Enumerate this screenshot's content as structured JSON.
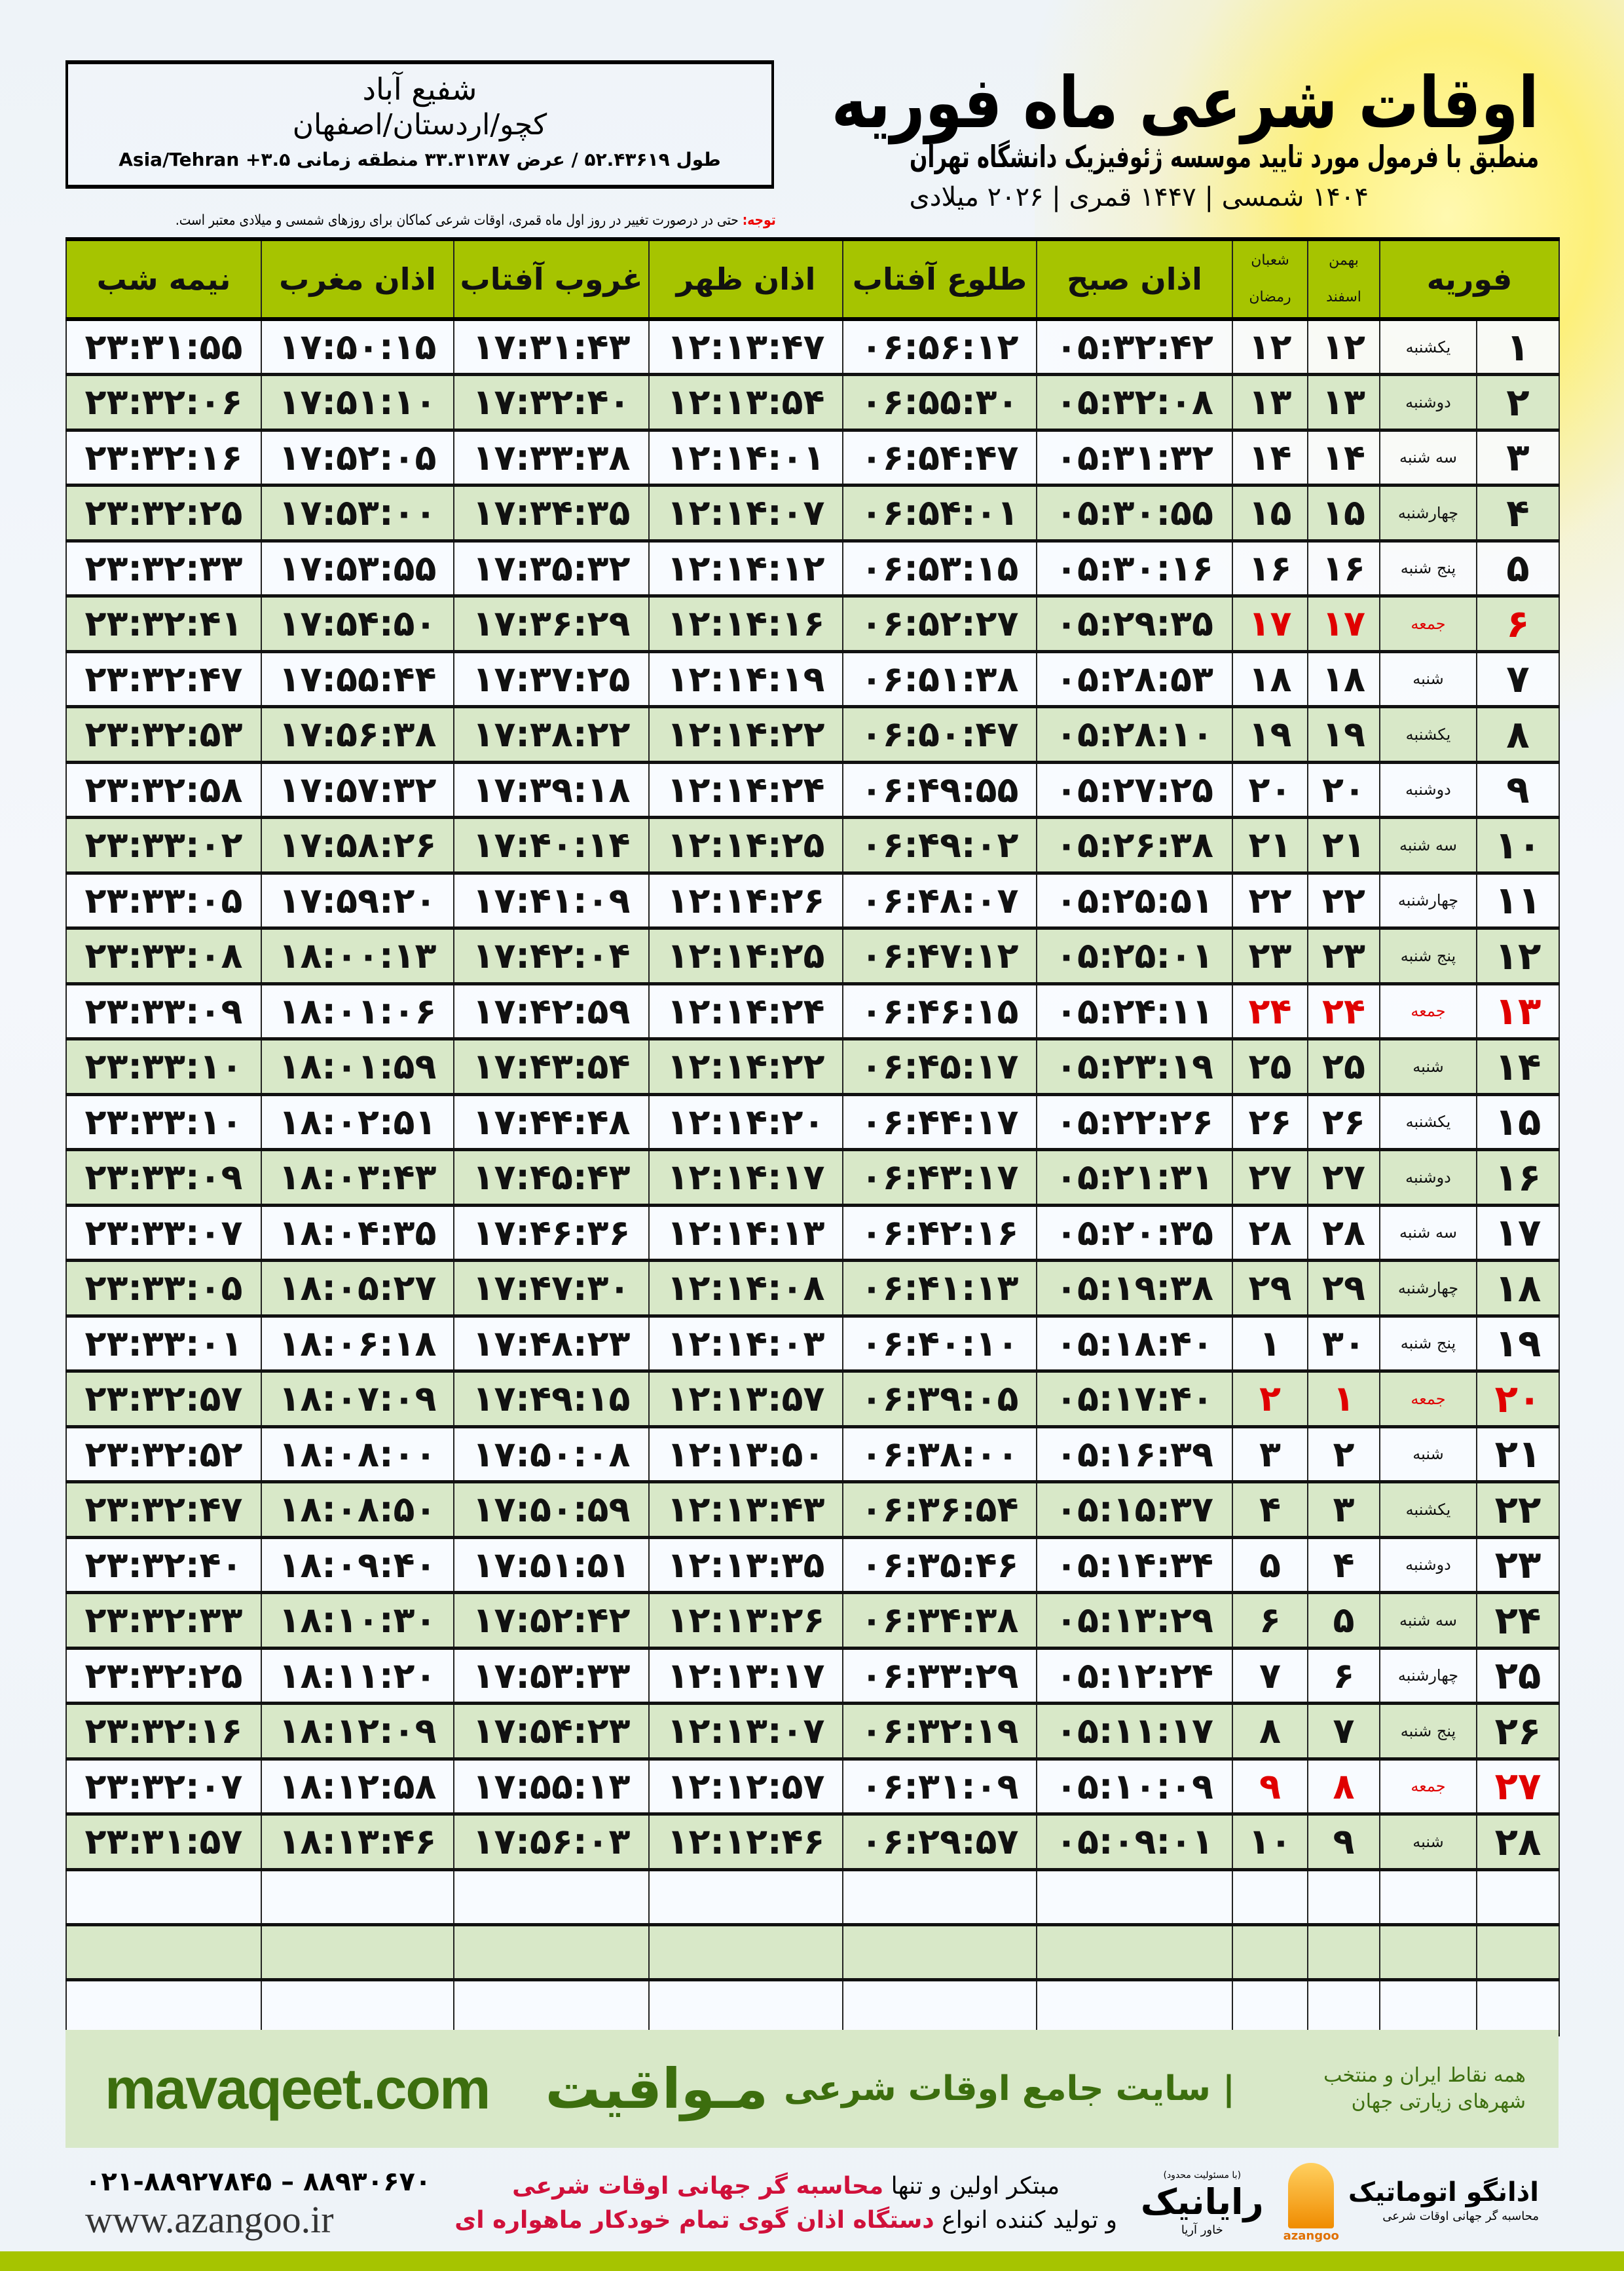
{
  "header": {
    "title": "اوقات شرعی ماه فوریه",
    "subtitle": "منطبق با فرمول مورد تایید موسسه ژئوفیزیک دانشگاه تهران",
    "dateline": "۱۴۰۴ شمسی | ۱۴۴۷ قمری | ۲۰۲۶ میلادی"
  },
  "location": {
    "city": "شفیع آباد",
    "region": "کچو/اردستان/اصفهان",
    "coords": "طول ۵۲.۴۳۶۱۹ / عرض ۳۳.۳۱۳۸۷ منطقه زمانی ۳.۵+ Asia/Tehran"
  },
  "note": {
    "label": "توجه:",
    "text": " حتی در درصورت تغییر در روز اول ماه قمری، اوقات شرعی کماکان برای روزهای شمسی و میلادی معتبر است."
  },
  "colors": {
    "header_green": "#a6c400",
    "row_green": "#d8e8c8",
    "friday_red": "#e00000",
    "brand_green": "#3c6e0e"
  },
  "table": {
    "headers": {
      "month": "فوریه",
      "solar_top": "بهمن",
      "solar_bottom": "اسفند",
      "lunar_top": "شعبان",
      "lunar_bottom": "رمضان",
      "fajr": "اذان صبح",
      "sunrise": "طلوع آفتاب",
      "dhuhr": "اذان ظهر",
      "sunset": "غروب آفتاب",
      "maghrib": "اذان مغرب",
      "midnight": "نیمه شب"
    },
    "rows": [
      [
        "۱",
        "یکشنبه",
        "۱۲",
        "۱۲",
        "۰۵:۳۲:۴۲",
        "۰۶:۵۶:۱۲",
        "۱۲:۱۳:۴۷",
        "۱۷:۳۱:۴۳",
        "۱۷:۵۰:۱۵",
        "۲۳:۳۱:۵۵"
      ],
      [
        "۲",
        "دوشنبه",
        "۱۳",
        "۱۳",
        "۰۵:۳۲:۰۸",
        "۰۶:۵۵:۳۰",
        "۱۲:۱۳:۵۴",
        "۱۷:۳۲:۴۰",
        "۱۷:۵۱:۱۰",
        "۲۳:۳۲:۰۶"
      ],
      [
        "۳",
        "سه شنبه",
        "۱۴",
        "۱۴",
        "۰۵:۳۱:۳۲",
        "۰۶:۵۴:۴۷",
        "۱۲:۱۴:۰۱",
        "۱۷:۳۳:۳۸",
        "۱۷:۵۲:۰۵",
        "۲۳:۳۲:۱۶"
      ],
      [
        "۴",
        "چهارشنبه",
        "۱۵",
        "۱۵",
        "۰۵:۳۰:۵۵",
        "۰۶:۵۴:۰۱",
        "۱۲:۱۴:۰۷",
        "۱۷:۳۴:۳۵",
        "۱۷:۵۳:۰۰",
        "۲۳:۳۲:۲۵"
      ],
      [
        "۵",
        "پنج شنبه",
        "۱۶",
        "۱۶",
        "۰۵:۳۰:۱۶",
        "۰۶:۵۳:۱۵",
        "۱۲:۱۴:۱۲",
        "۱۷:۳۵:۳۲",
        "۱۷:۵۳:۵۵",
        "۲۳:۳۲:۳۳"
      ],
      [
        "۶",
        "جمعه",
        "۱۷",
        "۱۷",
        "۰۵:۲۹:۳۵",
        "۰۶:۵۲:۲۷",
        "۱۲:۱۴:۱۶",
        "۱۷:۳۶:۲۹",
        "۱۷:۵۴:۵۰",
        "۲۳:۳۲:۴۱"
      ],
      [
        "۷",
        "شنبه",
        "۱۸",
        "۱۸",
        "۰۵:۲۸:۵۳",
        "۰۶:۵۱:۳۸",
        "۱۲:۱۴:۱۹",
        "۱۷:۳۷:۲۵",
        "۱۷:۵۵:۴۴",
        "۲۳:۳۲:۴۷"
      ],
      [
        "۸",
        "یکشنبه",
        "۱۹",
        "۱۹",
        "۰۵:۲۸:۱۰",
        "۰۶:۵۰:۴۷",
        "۱۲:۱۴:۲۲",
        "۱۷:۳۸:۲۲",
        "۱۷:۵۶:۳۸",
        "۲۳:۳۲:۵۳"
      ],
      [
        "۹",
        "دوشنبه",
        "۲۰",
        "۲۰",
        "۰۵:۲۷:۲۵",
        "۰۶:۴۹:۵۵",
        "۱۲:۱۴:۲۴",
        "۱۷:۳۹:۱۸",
        "۱۷:۵۷:۳۲",
        "۲۳:۳۲:۵۸"
      ],
      [
        "۱۰",
        "سه شنبه",
        "۲۱",
        "۲۱",
        "۰۵:۲۶:۳۸",
        "۰۶:۴۹:۰۲",
        "۱۲:۱۴:۲۵",
        "۱۷:۴۰:۱۴",
        "۱۷:۵۸:۲۶",
        "۲۳:۳۳:۰۲"
      ],
      [
        "۱۱",
        "چهارشنبه",
        "۲۲",
        "۲۲",
        "۰۵:۲۵:۵۱",
        "۰۶:۴۸:۰۷",
        "۱۲:۱۴:۲۶",
        "۱۷:۴۱:۰۹",
        "۱۷:۵۹:۲۰",
        "۲۳:۳۳:۰۵"
      ],
      [
        "۱۲",
        "پنج شنبه",
        "۲۳",
        "۲۳",
        "۰۵:۲۵:۰۱",
        "۰۶:۴۷:۱۲",
        "۱۲:۱۴:۲۵",
        "۱۷:۴۲:۰۴",
        "۱۸:۰۰:۱۳",
        "۲۳:۳۳:۰۸"
      ],
      [
        "۱۳",
        "جمعه",
        "۲۴",
        "۲۴",
        "۰۵:۲۴:۱۱",
        "۰۶:۴۶:۱۵",
        "۱۲:۱۴:۲۴",
        "۱۷:۴۲:۵۹",
        "۱۸:۰۱:۰۶",
        "۲۳:۳۳:۰۹"
      ],
      [
        "۱۴",
        "شنبه",
        "۲۵",
        "۲۵",
        "۰۵:۲۳:۱۹",
        "۰۶:۴۵:۱۷",
        "۱۲:۱۴:۲۲",
        "۱۷:۴۳:۵۴",
        "۱۸:۰۱:۵۹",
        "۲۳:۳۳:۱۰"
      ],
      [
        "۱۵",
        "یکشنبه",
        "۲۶",
        "۲۶",
        "۰۵:۲۲:۲۶",
        "۰۶:۴۴:۱۷",
        "۱۲:۱۴:۲۰",
        "۱۷:۴۴:۴۸",
        "۱۸:۰۲:۵۱",
        "۲۳:۳۳:۱۰"
      ],
      [
        "۱۶",
        "دوشنبه",
        "۲۷",
        "۲۷",
        "۰۵:۲۱:۳۱",
        "۰۶:۴۳:۱۷",
        "۱۲:۱۴:۱۷",
        "۱۷:۴۵:۴۳",
        "۱۸:۰۳:۴۳",
        "۲۳:۳۳:۰۹"
      ],
      [
        "۱۷",
        "سه شنبه",
        "۲۸",
        "۲۸",
        "۰۵:۲۰:۳۵",
        "۰۶:۴۲:۱۶",
        "۱۲:۱۴:۱۳",
        "۱۷:۴۶:۳۶",
        "۱۸:۰۴:۳۵",
        "۲۳:۳۳:۰۷"
      ],
      [
        "۱۸",
        "چهارشنبه",
        "۲۹",
        "۲۹",
        "۰۵:۱۹:۳۸",
        "۰۶:۴۱:۱۳",
        "۱۲:۱۴:۰۸",
        "۱۷:۴۷:۳۰",
        "۱۸:۰۵:۲۷",
        "۲۳:۳۳:۰۵"
      ],
      [
        "۱۹",
        "پنج شنبه",
        "۳۰",
        "۱",
        "۰۵:۱۸:۴۰",
        "۰۶:۴۰:۱۰",
        "۱۲:۱۴:۰۳",
        "۱۷:۴۸:۲۳",
        "۱۸:۰۶:۱۸",
        "۲۳:۳۳:۰۱"
      ],
      [
        "۲۰",
        "جمعه",
        "۱",
        "۲",
        "۰۵:۱۷:۴۰",
        "۰۶:۳۹:۰۵",
        "۱۲:۱۳:۵۷",
        "۱۷:۴۹:۱۵",
        "۱۸:۰۷:۰۹",
        "۲۳:۳۲:۵۷"
      ],
      [
        "۲۱",
        "شنبه",
        "۲",
        "۳",
        "۰۵:۱۶:۳۹",
        "۰۶:۳۸:۰۰",
        "۱۲:۱۳:۵۰",
        "۱۷:۵۰:۰۸",
        "۱۸:۰۸:۰۰",
        "۲۳:۳۲:۵۲"
      ],
      [
        "۲۲",
        "یکشنبه",
        "۳",
        "۴",
        "۰۵:۱۵:۳۷",
        "۰۶:۳۶:۵۴",
        "۱۲:۱۳:۴۳",
        "۱۷:۵۰:۵۹",
        "۱۸:۰۸:۵۰",
        "۲۳:۳۲:۴۷"
      ],
      [
        "۲۳",
        "دوشنبه",
        "۴",
        "۵",
        "۰۵:۱۴:۳۴",
        "۰۶:۳۵:۴۶",
        "۱۲:۱۳:۳۵",
        "۱۷:۵۱:۵۱",
        "۱۸:۰۹:۴۰",
        "۲۳:۳۲:۴۰"
      ],
      [
        "۲۴",
        "سه شنبه",
        "۵",
        "۶",
        "۰۵:۱۳:۲۹",
        "۰۶:۳۴:۳۸",
        "۱۲:۱۳:۲۶",
        "۱۷:۵۲:۴۲",
        "۱۸:۱۰:۳۰",
        "۲۳:۳۲:۳۳"
      ],
      [
        "۲۵",
        "چهارشنبه",
        "۶",
        "۷",
        "۰۵:۱۲:۲۴",
        "۰۶:۳۳:۲۹",
        "۱۲:۱۳:۱۷",
        "۱۷:۵۳:۳۳",
        "۱۸:۱۱:۲۰",
        "۲۳:۳۲:۲۵"
      ],
      [
        "۲۶",
        "پنج شنبه",
        "۷",
        "۸",
        "۰۵:۱۱:۱۷",
        "۰۶:۳۲:۱۹",
        "۱۲:۱۳:۰۷",
        "۱۷:۵۴:۲۳",
        "۱۸:۱۲:۰۹",
        "۲۳:۳۲:۱۶"
      ],
      [
        "۲۷",
        "جمعه",
        "۸",
        "۹",
        "۰۵:۱۰:۰۹",
        "۰۶:۳۱:۰۹",
        "۱۲:۱۲:۵۷",
        "۱۷:۵۵:۱۳",
        "۱۸:۱۲:۵۸",
        "۲۳:۳۲:۰۷"
      ],
      [
        "۲۸",
        "شنبه",
        "۹",
        "۱۰",
        "۰۵:۰۹:۰۱",
        "۰۶:۲۹:۵۷",
        "۱۲:۱۲:۴۶",
        "۱۷:۵۶:۰۳",
        "۱۸:۱۳:۴۶",
        "۲۳:۳۱:۵۷"
      ]
    ],
    "friday_label": "جمعه",
    "empty_rows": 3
  },
  "footer": {
    "mavaqeet_logo": "مـواقیت",
    "mavaqeet_slogan": "| سایت جامع اوقات شرعی",
    "mavaqeet_tagline": "همه نقاط ایران و منتخب شهرهای زیارتی جهان",
    "mavaqeet_url": "mavaqeet.com",
    "phone": "۰۲۱-۸۸۹۲۷۸۴۵ – ۸۸۹۳۰۶۷۰",
    "website": "www.azangoo.ir",
    "promo_line1_a": "مبتکر اولین و تنها ",
    "promo_line1_b": "محاسبه گر جهانی اوقات شرعی",
    "promo_line2_a": "و تولید کننده انواع ",
    "promo_line2_b": "دستگاه اذان گوی تمام خودکار ماهواره ای",
    "rayanik_ltd": "(با مسئولیت محدود)",
    "rayanik_name": "رایانیک",
    "rayanik_sub": "خاور آریا",
    "azangoo_name": "اذانگو اتوماتیک",
    "azangoo_sub": "محاسبه گر جهانی اوقات شرعی",
    "azangoo_brand": "azangoo"
  }
}
